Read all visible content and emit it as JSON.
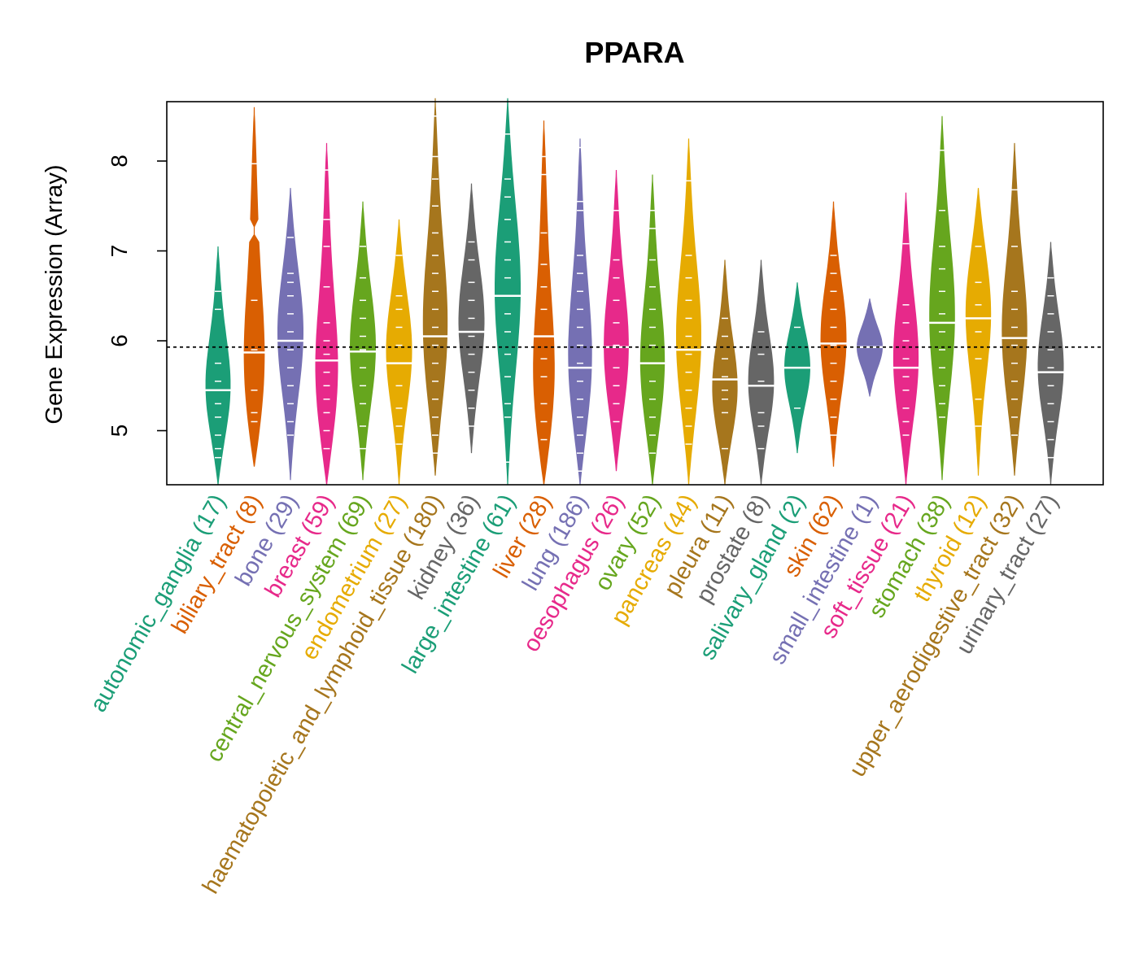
{
  "chart_data": {
    "type": "violin",
    "title": "PPARA",
    "xlabel": "",
    "ylabel": "Gene Expression (Array)",
    "ylim": [
      4.4,
      8.7
    ],
    "yticks": [
      "5",
      "6",
      "7",
      "8"
    ],
    "reference_line": 5.93,
    "categories": [
      {
        "name": "autonomic_ganglia",
        "count_label": "(17)",
        "color": "#1B9E77",
        "min": 4.4,
        "max": 7.05,
        "median": 5.45,
        "mode": 5.4,
        "points": [
          4.7,
          4.8,
          4.95,
          5.15,
          5.3,
          5.45,
          5.55,
          5.75,
          6.35,
          6.55
        ]
      },
      {
        "name": "biliary_tract",
        "count_label": "(8)",
        "color": "#D95F02",
        "min": 4.6,
        "max": 8.6,
        "median": 5.87,
        "mode": 5.4,
        "points": [
          5.1,
          5.2,
          5.45,
          5.9,
          6.45,
          7.97
        ],
        "gap": [
          7.1,
          7.35
        ]
      },
      {
        "name": "bone",
        "count_label": "(29)",
        "color": "#7570B3",
        "min": 4.45,
        "max": 7.7,
        "median": 6.0,
        "mode": 6.1,
        "points": [
          4.95,
          5.1,
          5.3,
          5.5,
          5.7,
          5.9,
          6.1,
          6.3,
          6.5,
          6.65,
          6.75,
          7.15
        ]
      },
      {
        "name": "breast",
        "count_label": "(59)",
        "color": "#E7298A",
        "min": 4.4,
        "max": 8.2,
        "median": 5.78,
        "mode": 5.4,
        "points": [
          4.8,
          5.0,
          5.2,
          5.35,
          5.5,
          5.65,
          5.85,
          6.0,
          6.2,
          6.6,
          7.05,
          7.35,
          7.9
        ]
      },
      {
        "name": "central_nervous_system",
        "count_label": "(69)",
        "color": "#66A61E",
        "min": 4.45,
        "max": 7.55,
        "median": 5.88,
        "mode": 5.9,
        "points": [
          4.8,
          5.05,
          5.3,
          5.5,
          5.7,
          5.9,
          6.05,
          6.25,
          6.45,
          6.7,
          7.05
        ]
      },
      {
        "name": "endometrium",
        "count_label": "(27)",
        "color": "#E6AB02",
        "min": 4.4,
        "max": 7.35,
        "median": 5.75,
        "mode": 5.9,
        "points": [
          4.85,
          5.05,
          5.25,
          5.5,
          5.75,
          5.95,
          6.15,
          6.35,
          6.5,
          6.95
        ]
      },
      {
        "name": "haematopoietic_and_lymphoid_tissue",
        "count_label": "(180)",
        "color": "#A6761D",
        "min": 4.5,
        "max": 8.7,
        "median": 6.05,
        "mode": 6.0,
        "points": [
          4.75,
          4.95,
          5.15,
          5.35,
          5.55,
          5.75,
          5.95,
          6.15,
          6.35,
          6.55,
          6.75,
          6.95,
          7.2,
          7.5,
          7.8,
          8.05,
          8.5
        ]
      },
      {
        "name": "kidney",
        "count_label": "(36)",
        "color": "#666666",
        "min": 4.75,
        "max": 7.75,
        "median": 6.1,
        "mode": 6.2,
        "points": [
          5.05,
          5.25,
          5.45,
          5.65,
          5.85,
          6.05,
          6.25,
          6.45,
          6.65,
          6.9,
          7.1
        ]
      },
      {
        "name": "large_intestine",
        "count_label": "(61)",
        "color": "#1B9E77",
        "min": 4.4,
        "max": 8.7,
        "median": 6.5,
        "mode": 6.6,
        "points": [
          4.65,
          5.15,
          5.3,
          5.6,
          5.85,
          6.1,
          6.3,
          6.5,
          6.7,
          6.9,
          7.1,
          7.35,
          7.6,
          7.8,
          8.3
        ]
      },
      {
        "name": "liver",
        "count_label": "(28)",
        "color": "#D95F02",
        "min": 4.4,
        "max": 8.45,
        "median": 6.05,
        "mode": 5.3,
        "points": [
          4.9,
          5.1,
          5.3,
          5.6,
          5.8,
          6.05,
          6.35,
          6.6,
          6.85,
          7.2,
          7.85,
          8.05
        ]
      },
      {
        "name": "lung",
        "count_label": "(186)",
        "color": "#7570B3",
        "min": 4.4,
        "max": 8.25,
        "median": 5.7,
        "mode": 5.6,
        "points": [
          4.55,
          4.75,
          4.95,
          5.15,
          5.35,
          5.55,
          5.75,
          5.95,
          6.15,
          6.35,
          6.55,
          6.75,
          6.95,
          7.45,
          7.55,
          8.15
        ]
      },
      {
        "name": "oesophagus",
        "count_label": "(26)",
        "color": "#E7298A",
        "min": 4.55,
        "max": 7.9,
        "median": 5.93,
        "mode": 5.8,
        "points": [
          5.1,
          5.3,
          5.5,
          5.7,
          5.95,
          6.2,
          6.45,
          6.7,
          6.9,
          7.45
        ]
      },
      {
        "name": "ovary",
        "count_label": "(52)",
        "color": "#66A61E",
        "min": 4.4,
        "max": 7.85,
        "median": 5.75,
        "mode": 5.6,
        "points": [
          4.75,
          4.95,
          5.15,
          5.35,
          5.55,
          5.75,
          5.95,
          6.15,
          6.35,
          6.6,
          6.9,
          7.25,
          7.45
        ]
      },
      {
        "name": "pancreas",
        "count_label": "(44)",
        "color": "#E6AB02",
        "min": 4.4,
        "max": 8.25,
        "median": 5.9,
        "mode": 5.9,
        "points": [
          4.85,
          5.05,
          5.25,
          5.45,
          5.65,
          5.85,
          6.05,
          6.25,
          6.45,
          6.7,
          6.95,
          7.78
        ]
      },
      {
        "name": "pleura",
        "count_label": "(11)",
        "color": "#A6761D",
        "min": 4.4,
        "max": 6.9,
        "median": 5.57,
        "mode": 5.4,
        "points": [
          4.8,
          5.2,
          5.35,
          5.45,
          5.6,
          5.8,
          6.05,
          6.25
        ]
      },
      {
        "name": "prostate",
        "count_label": "(8)",
        "color": "#666666",
        "min": 4.4,
        "max": 6.9,
        "median": 5.5,
        "mode": 5.5,
        "points": [
          4.8,
          5.05,
          5.2,
          5.55,
          5.85,
          6.1
        ]
      },
      {
        "name": "salivary_gland",
        "count_label": "(2)",
        "color": "#1B9E77",
        "min": 4.75,
        "max": 6.65,
        "median": 5.7,
        "mode": 5.7,
        "points": [
          5.25,
          6.15
        ]
      },
      {
        "name": "skin",
        "count_label": "(62)",
        "color": "#D95F02",
        "min": 4.6,
        "max": 7.55,
        "median": 5.97,
        "mode": 6.0,
        "points": [
          4.95,
          5.15,
          5.35,
          5.55,
          5.75,
          5.95,
          6.15,
          6.35,
          6.55,
          6.75,
          6.95
        ]
      },
      {
        "name": "small_intestine",
        "count_label": "(1)",
        "color": "#7570B3",
        "min": 5.38,
        "max": 6.47,
        "median": 5.93,
        "mode": 5.93,
        "points": [
          5.93
        ]
      },
      {
        "name": "soft_tissue",
        "count_label": "(21)",
        "color": "#E7298A",
        "min": 4.4,
        "max": 7.65,
        "median": 5.7,
        "mode": 5.7,
        "points": [
          4.95,
          5.1,
          5.25,
          5.45,
          5.6,
          5.8,
          6.0,
          6.2,
          6.4,
          7.08
        ]
      },
      {
        "name": "stomach",
        "count_label": "(38)",
        "color": "#66A61E",
        "min": 4.45,
        "max": 8.5,
        "median": 6.2,
        "mode": 6.2,
        "points": [
          5.15,
          5.3,
          5.5,
          5.7,
          5.9,
          6.1,
          6.3,
          6.55,
          6.8,
          7.05,
          7.45,
          8.12
        ]
      },
      {
        "name": "thyroid",
        "count_label": "(12)",
        "color": "#E6AB02",
        "min": 4.5,
        "max": 7.7,
        "median": 6.25,
        "mode": 6.4,
        "points": [
          5.05,
          5.35,
          5.8,
          6.1,
          6.4,
          6.65,
          7.05
        ]
      },
      {
        "name": "upper_aerodigestive_tract",
        "count_label": "(32)",
        "color": "#A6761D",
        "min": 4.5,
        "max": 8.2,
        "median": 6.03,
        "mode": 6.0,
        "points": [
          4.95,
          5.15,
          5.35,
          5.55,
          5.75,
          5.95,
          6.15,
          6.35,
          6.55,
          7.05,
          7.68
        ]
      },
      {
        "name": "urinary_tract",
        "count_label": "(27)",
        "color": "#666666",
        "min": 4.4,
        "max": 7.1,
        "median": 5.65,
        "mode": 5.7,
        "points": [
          4.7,
          4.9,
          5.1,
          5.3,
          5.5,
          5.7,
          5.9,
          6.1,
          6.3,
          6.5,
          6.7
        ]
      }
    ]
  }
}
